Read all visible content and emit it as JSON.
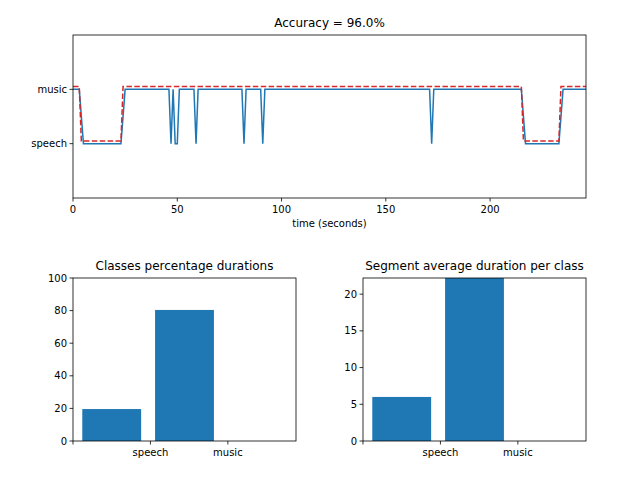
{
  "chart_data": [
    {
      "type": "line",
      "title": "Accuracy = 96.0%",
      "x_label": "time (seconds)",
      "xlim": [
        0,
        246
      ],
      "xticks": [
        0,
        50,
        100,
        150,
        200
      ],
      "ylim": [
        -1,
        2
      ],
      "yticks": [
        {
          "value": 0,
          "label": "speech"
        },
        {
          "value": 1,
          "label": "music"
        }
      ],
      "series": [
        {
          "color": "#1f77b4",
          "line_style": "solid",
          "x": [
            0,
            3,
            5,
            23,
            25,
            46,
            47,
            48,
            49,
            50,
            51,
            58,
            59,
            60,
            81,
            82,
            83,
            90,
            91,
            92,
            171,
            172,
            173,
            215,
            217,
            233,
            235,
            246
          ],
          "values": [
            1,
            1,
            0,
            0,
            1,
            1,
            0,
            1,
            0,
            0,
            1,
            1,
            0,
            1,
            1,
            0,
            1,
            1,
            0,
            1,
            1,
            0,
            1,
            1,
            0,
            0,
            1,
            1
          ]
        },
        {
          "color": "#d62728",
          "line_style": "dashed",
          "x": [
            0,
            3,
            4,
            23,
            24,
            215,
            216,
            233,
            234,
            246
          ],
          "values": [
            1.05,
            1.05,
            0.05,
            0.05,
            1.05,
            1.05,
            0.05,
            0.05,
            1.05,
            1.05
          ]
        }
      ]
    },
    {
      "type": "bar",
      "title": "Classes percentage durations",
      "categories": [
        "speech",
        "music"
      ],
      "values": [
        19.6,
        80.4
      ],
      "color": "#1f77b4",
      "ylim": [
        0,
        100
      ],
      "yticks": [
        0,
        20,
        40,
        60,
        80,
        100
      ]
    },
    {
      "type": "bar",
      "title": "Segment average duration per class",
      "categories": [
        "speech",
        "music"
      ],
      "values": [
        6.0,
        22.2
      ],
      "color": "#1f77b4",
      "ylim": [
        0,
        22.2
      ],
      "yticks": [
        0,
        5,
        10,
        15,
        20
      ]
    }
  ]
}
